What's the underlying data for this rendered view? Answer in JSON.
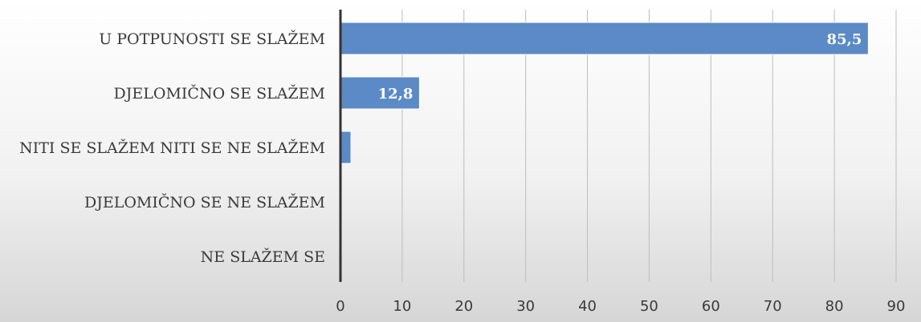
{
  "chart_data": {
    "type": "bar",
    "orientation": "horizontal",
    "categories": [
      "U POTPUNOSTI SE SLAŽEM",
      "DJELOMIČNO SE SLAŽEM",
      "NITI SE SLAŽEM NITI SE NE SLAŽEM",
      "DJELOMIČNO SE NE SLAŽEM",
      "NE SLAŽEM SE"
    ],
    "values": [
      85.5,
      12.8,
      1.7,
      0,
      0
    ],
    "data_labels": [
      "85,5",
      "12,8",
      "",
      "",
      ""
    ],
    "x_ticks": [
      "0",
      "10",
      "20",
      "30",
      "40",
      "50",
      "60",
      "70",
      "80",
      "90"
    ],
    "xlim": [
      0,
      90
    ],
    "grid": true,
    "legend": "none",
    "bar_color": "#5b8ac6",
    "bar_edge_color": "#ffffff",
    "axis_color": "#333333",
    "grid_color": "#bdbdbd"
  }
}
